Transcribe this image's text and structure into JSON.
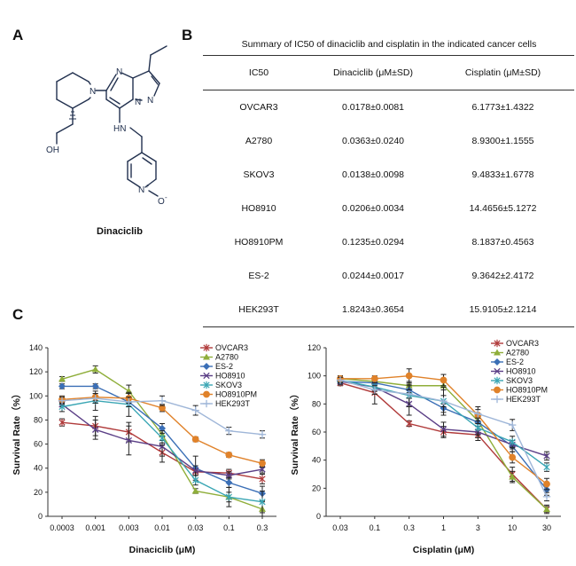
{
  "panels": {
    "a": "A",
    "b": "B",
    "c": "C"
  },
  "compound": {
    "name": "Dinaciclib",
    "atoms": {
      "N1": "N",
      "N2": "N",
      "N3": "N",
      "N4": "N",
      "OH": "OH",
      "NH": "HN",
      "Npy": "N",
      "Ominus": "O",
      "minus": "-",
      "plus": "+"
    }
  },
  "table": {
    "title": "Summary of IC50 of dinaciclib and cisplatin in the indicated cancer cells",
    "headers": [
      "IC50",
      "Dinaciclib (μM±SD)",
      "Cisplatin (μM±SD)"
    ],
    "rows": [
      [
        "OVCAR3",
        "0.0178±0.0081",
        "6.1773±1.4322"
      ],
      [
        "A2780",
        "0.0363±0.0240",
        "8.9300±1.1555"
      ],
      [
        "SKOV3",
        "0.0138±0.0098",
        "9.4833±1.6778"
      ],
      [
        "HO8910",
        "0.0206±0.0034",
        "14.4656±5.1272"
      ],
      [
        "HO8910PM",
        "0.1235±0.0294",
        "8.1837±0.4563"
      ],
      [
        "ES-2",
        "0.0244±0.0017",
        "9.3642±2.4172"
      ],
      [
        "HEK293T",
        "1.8243±0.3654",
        "15.9105±2.1214"
      ]
    ]
  },
  "colors": {
    "OVCAR3": "#b03a3a",
    "A2780": "#8fae3a",
    "ES-2": "#3b6fb6",
    "HO8910": "#5a3e86",
    "SKOV3": "#3aa6b4",
    "HO8910PM": "#e0822a",
    "HEK293T": "#9fb6d8"
  },
  "markers": {
    "OVCAR3": "asterisk",
    "A2780": "triangle",
    "ES-2": "diamond",
    "HO8910": "x",
    "SKOV3": "asterisk",
    "HO8910PM": "circle",
    "HEK293T": "plus"
  },
  "chart_data": [
    {
      "type": "line",
      "xlabel": "Dinaciclib (μM)",
      "ylabel": "Survival Rate（%）",
      "x": [
        "0.0003",
        "0.001",
        "0.003",
        "0.01",
        "0.03",
        "0.1",
        "0.3"
      ],
      "ylim": [
        0,
        140
      ],
      "yticks": [
        0,
        20,
        40,
        60,
        80,
        100,
        120,
        140
      ],
      "legend": "top-right",
      "series": [
        {
          "name": "OVCAR3",
          "values": [
            78,
            75,
            70,
            53,
            37,
            36,
            31
          ],
          "err": [
            3,
            8,
            8,
            8,
            3,
            3,
            4
          ]
        },
        {
          "name": "A2780",
          "values": [
            114,
            122,
            104,
            68,
            21,
            16,
            6
          ],
          "err": [
            2,
            3,
            5,
            5,
            2,
            4,
            6
          ]
        },
        {
          "name": "ES-2",
          "values": [
            108,
            108,
            95,
            73,
            40,
            28,
            19
          ],
          "err": [
            2,
            2,
            4,
            4,
            10,
            4,
            6
          ]
        },
        {
          "name": "HO8910",
          "values": [
            93,
            72,
            63,
            58,
            38,
            34,
            39
          ],
          "err": [
            2,
            8,
            12,
            8,
            4,
            3,
            3
          ]
        },
        {
          "name": "SKOV3",
          "values": [
            91,
            96,
            93,
            65,
            30,
            16,
            12
          ],
          "err": [
            4,
            8,
            10,
            6,
            4,
            8,
            9
          ]
        },
        {
          "name": "HO8910PM",
          "values": [
            97,
            99,
            98,
            90,
            64,
            51,
            44
          ],
          "err": [
            3,
            3,
            4,
            3,
            2,
            2,
            3
          ]
        },
        {
          "name": "HEK293T",
          "values": [
            96,
            98,
            95,
            96,
            88,
            71,
            68
          ],
          "err": [
            3,
            4,
            4,
            4,
            4,
            3,
            3
          ]
        }
      ]
    },
    {
      "type": "line",
      "xlabel": "Cisplatin (μM)",
      "ylabel": "Survival Rate（%）",
      "x": [
        "0.03",
        "0.1",
        "0.3",
        "1",
        "3",
        "10",
        "30"
      ],
      "ylim": [
        0,
        120
      ],
      "yticks": [
        0,
        20,
        40,
        60,
        80,
        100,
        120
      ],
      "legend": "top-right",
      "series": [
        {
          "name": "OVCAR3",
          "values": [
            95,
            88,
            66,
            60,
            58,
            30,
            5
          ],
          "err": [
            2,
            8,
            2,
            4,
            4,
            5,
            3
          ]
        },
        {
          "name": "A2780",
          "values": [
            98,
            96,
            93,
            93,
            68,
            28,
            5
          ],
          "err": [
            2,
            2,
            3,
            3,
            4,
            4,
            2
          ]
        },
        {
          "name": "ES-2",
          "values": [
            96,
            95,
            90,
            77,
            67,
            50,
            19
          ],
          "err": [
            2,
            3,
            3,
            3,
            3,
            4,
            4
          ]
        },
        {
          "name": "HO8910",
          "values": [
            96,
            92,
            80,
            62,
            60,
            51,
            43
          ],
          "err": [
            2,
            3,
            8,
            5,
            4,
            3,
            3
          ]
        },
        {
          "name": "SKOV3",
          "values": [
            97,
            92,
            86,
            82,
            63,
            53,
            35
          ],
          "err": [
            2,
            5,
            8,
            10,
            5,
            4,
            3
          ]
        },
        {
          "name": "HO8910PM",
          "values": [
            98,
            98,
            100,
            97,
            72,
            42,
            23
          ],
          "err": [
            2,
            2,
            5,
            4,
            6,
            4,
            4
          ]
        },
        {
          "name": "HEK293T",
          "values": [
            97,
            90,
            87,
            82,
            73,
            65,
            14
          ],
          "err": [
            2,
            3,
            3,
            4,
            3,
            4,
            3
          ]
        }
      ]
    }
  ]
}
